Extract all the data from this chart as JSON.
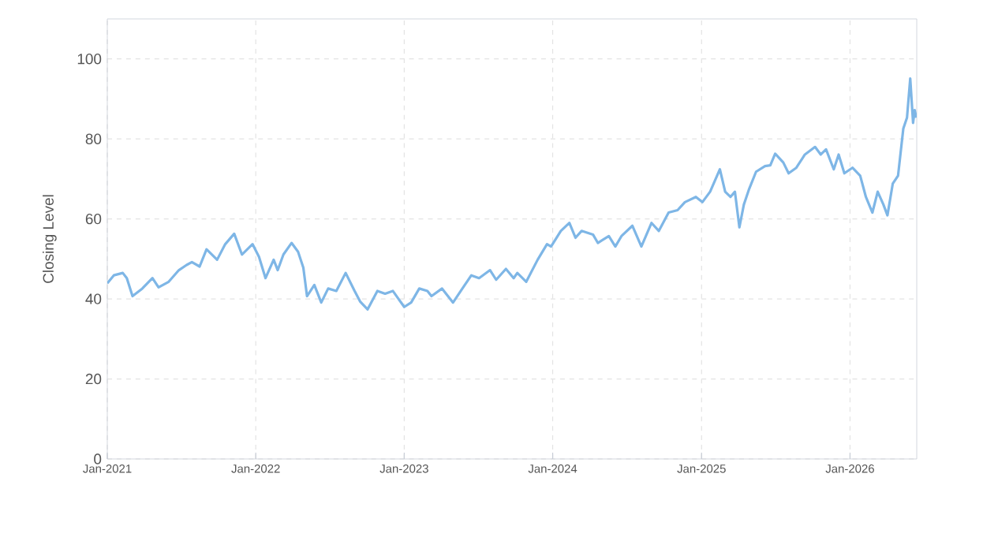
{
  "chart_data": {
    "type": "line",
    "ylabel": "Closing Level",
    "xlim": [
      "2021-01-01",
      "2026-06-14"
    ],
    "ylim": [
      0,
      110
    ],
    "xticks": [
      {
        "value": "2021-01-01",
        "label": "Jan-2021"
      },
      {
        "value": "2022-01-01",
        "label": "Jan-2022"
      },
      {
        "value": "2023-01-01",
        "label": "Jan-2023"
      },
      {
        "value": "2024-01-01",
        "label": "Jan-2024"
      },
      {
        "value": "2025-01-01",
        "label": "Jan-2025"
      },
      {
        "value": "2026-01-01",
        "label": "Jan-2026"
      }
    ],
    "yticks": [
      0,
      20,
      40,
      60,
      80,
      100
    ],
    "grid": true,
    "marker": "none",
    "line_style": "solid",
    "x": [
      "2021-01-01",
      "2021-01-17",
      "2021-02-08",
      "2021-02-18",
      "2021-03-04",
      "2021-03-28",
      "2021-04-22",
      "2021-05-07",
      "2021-06-01",
      "2021-06-26",
      "2021-07-15",
      "2021-07-28",
      "2021-08-16",
      "2021-09-02",
      "2021-09-28",
      "2021-10-18",
      "2021-11-09",
      "2021-11-28",
      "2021-12-24",
      "2022-01-09",
      "2022-01-25",
      "2022-02-14",
      "2022-02-24",
      "2022-03-10",
      "2022-03-30",
      "2022-04-15",
      "2022-04-28",
      "2022-05-07",
      "2022-05-25",
      "2022-06-11",
      "2022-06-28",
      "2022-07-18",
      "2022-08-10",
      "2022-09-01",
      "2022-09-15",
      "2022-10-03",
      "2022-10-27",
      "2022-11-15",
      "2022-12-04",
      "2023-01-01",
      "2023-01-18",
      "2023-02-07",
      "2023-02-27",
      "2023-03-09",
      "2023-04-04",
      "2023-05-01",
      "2023-05-24",
      "2023-06-15",
      "2023-07-04",
      "2023-07-31",
      "2023-08-15",
      "2023-09-08",
      "2023-09-27",
      "2023-10-06",
      "2023-10-28",
      "2023-11-25",
      "2023-12-18",
      "2023-12-28",
      "2024-01-21",
      "2024-02-11",
      "2024-02-26",
      "2024-03-12",
      "2024-04-09",
      "2024-04-21",
      "2024-05-18",
      "2024-06-03",
      "2024-06-18",
      "2024-07-15",
      "2024-08-06",
      "2024-08-31",
      "2024-09-18",
      "2024-10-12",
      "2024-11-03",
      "2024-11-21",
      "2024-12-18",
      "2025-01-03",
      "2025-01-22",
      "2025-02-15",
      "2025-02-28",
      "2025-03-13",
      "2025-03-24",
      "2025-04-04",
      "2025-04-15",
      "2025-04-28",
      "2025-05-15",
      "2025-06-06",
      "2025-06-19",
      "2025-07-01",
      "2025-07-21",
      "2025-08-03",
      "2025-08-22",
      "2025-09-12",
      "2025-10-07",
      "2025-10-21",
      "2025-11-03",
      "2025-11-22",
      "2025-12-04",
      "2025-12-18",
      "2026-01-07",
      "2026-01-26",
      "2026-02-09",
      "2026-02-25",
      "2026-03-10",
      "2026-03-24",
      "2026-04-03",
      "2026-04-16",
      "2026-04-29",
      "2026-05-12",
      "2026-05-21",
      "2026-05-29",
      "2026-06-05",
      "2026-06-09",
      "2026-06-13"
    ],
    "series": [
      {
        "color": "#7eb6e6",
        "values": [
          43.9,
          45.9,
          46.5,
          45.2,
          40.7,
          42.6,
          45.2,
          42.9,
          44.3,
          47.2,
          48.5,
          49.2,
          48.1,
          52.4,
          49.8,
          53.7,
          56.3,
          51.1,
          53.7,
          50.5,
          45.2,
          49.8,
          47.2,
          51.1,
          54.0,
          51.8,
          47.8,
          40.7,
          43.5,
          39.1,
          42.6,
          42.0,
          46.5,
          42.0,
          39.3,
          37.4,
          42.0,
          41.3,
          42.0,
          38.0,
          39.1,
          42.6,
          42.0,
          40.7,
          42.6,
          39.1,
          42.6,
          45.9,
          45.2,
          47.2,
          44.8,
          47.5,
          45.2,
          46.5,
          44.3,
          49.8,
          53.7,
          53.1,
          57.0,
          59.0,
          55.3,
          57.0,
          56.1,
          54.0,
          55.7,
          53.1,
          55.7,
          58.3,
          53.1,
          59.0,
          57.0,
          61.6,
          62.2,
          64.2,
          65.5,
          64.2,
          66.8,
          72.4,
          66.8,
          65.5,
          66.8,
          57.9,
          63.6,
          67.5,
          71.8,
          73.2,
          73.4,
          76.3,
          74.1,
          71.4,
          72.8,
          76.1,
          78.0,
          76.1,
          77.4,
          72.4,
          76.1,
          71.4,
          72.8,
          70.8,
          65.5,
          61.6,
          66.8,
          63.6,
          60.9,
          68.8,
          70.8,
          82.6,
          85.3,
          95.1,
          84.0,
          87.2,
          85.3
        ]
      }
    ]
  }
}
